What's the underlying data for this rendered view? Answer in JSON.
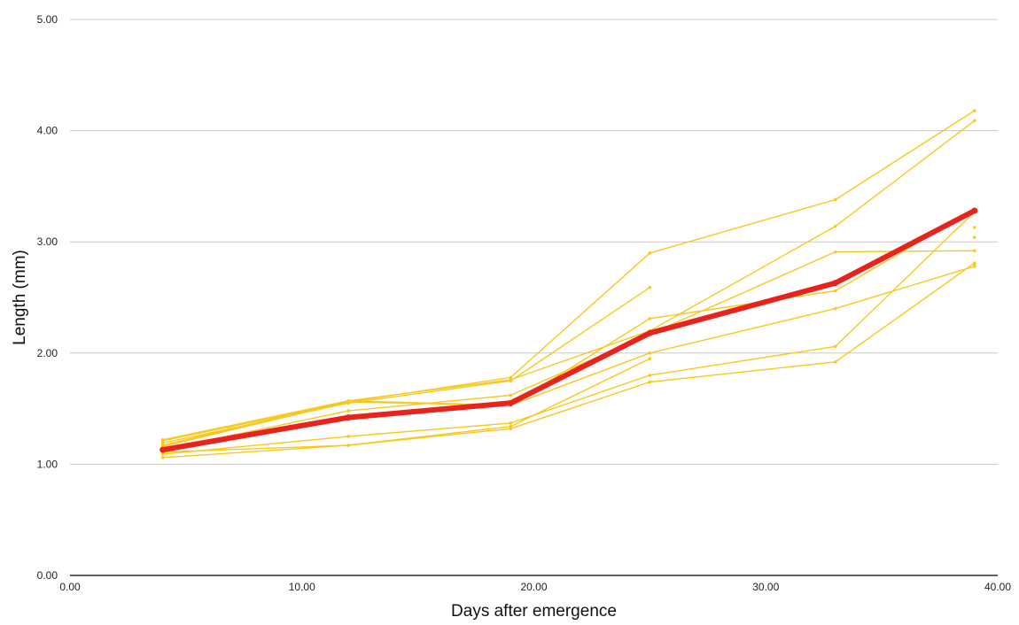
{
  "chart_data": {
    "type": "line",
    "title": "",
    "xlabel": "Days after emergence",
    "ylabel": "Length (mm)",
    "xlim": [
      0,
      40
    ],
    "ylim": [
      0,
      5
    ],
    "x_ticks": [
      0,
      10,
      20,
      30,
      40
    ],
    "y_ticks": [
      0,
      1,
      2,
      3,
      4,
      5
    ],
    "x_tick_labels": [
      "0.00",
      "10.00",
      "20.00",
      "30.00",
      "40.00"
    ],
    "y_tick_labels": [
      "0.00",
      "1.00",
      "2.00",
      "3.00",
      "4.00",
      "5.00"
    ],
    "grid": "horizontal",
    "legend": "none",
    "colors": {
      "individual": "#f7c81e",
      "mean": "#e8231c"
    },
    "series": [
      {
        "x": [
          4,
          12,
          19,
          25,
          33,
          39
        ],
        "y": [
          1.21,
          1.56,
          1.78,
          2.9,
          3.38,
          4.18
        ]
      },
      {
        "x": [
          4,
          12,
          19,
          25,
          33,
          39
        ],
        "y": [
          1.17,
          1.57,
          1.76,
          2.2,
          3.14,
          4.09
        ]
      },
      {
        "x": [
          4,
          12,
          19,
          25,
          33,
          39
        ],
        "y": [
          1.22,
          1.57,
          1.53,
          2.31,
          2.56,
          3.29
        ]
      },
      {
        "x": [
          4,
          12,
          19,
          25,
          33,
          39
        ],
        "y": [
          1.13,
          1.48,
          1.62,
          2.17,
          2.91,
          2.92
        ]
      },
      {
        "x": [
          4,
          12,
          19,
          25,
          33,
          39
        ],
        "y": [
          1.16,
          1.56,
          1.53,
          2.0,
          2.4,
          2.78
        ]
      },
      {
        "x": [
          4,
          12,
          19,
          25,
          33,
          39
        ],
        "y": [
          1.09,
          1.25,
          1.37,
          1.8,
          2.06,
          3.27
        ]
      },
      {
        "x": [
          4,
          12,
          19,
          25,
          33,
          39
        ],
        "y": [
          1.06,
          1.17,
          1.32,
          1.74,
          1.92,
          2.81
        ]
      },
      {
        "x": [
          4,
          12,
          19,
          25
        ],
        "y": [
          1.19,
          1.55,
          1.75,
          2.59
        ]
      },
      {
        "x": [
          4,
          12,
          19,
          25
        ],
        "y": [
          1.11,
          1.17,
          1.34,
          1.95
        ]
      }
    ],
    "extra_points": [
      {
        "x": 39,
        "y": 3.13
      },
      {
        "x": 39,
        "y": 3.04
      },
      {
        "x": 39,
        "y": 2.8
      }
    ],
    "mean_series": {
      "x": [
        4,
        12,
        19,
        25,
        33,
        39
      ],
      "y": [
        1.13,
        1.42,
        1.55,
        2.18,
        2.63,
        3.28
      ]
    }
  }
}
